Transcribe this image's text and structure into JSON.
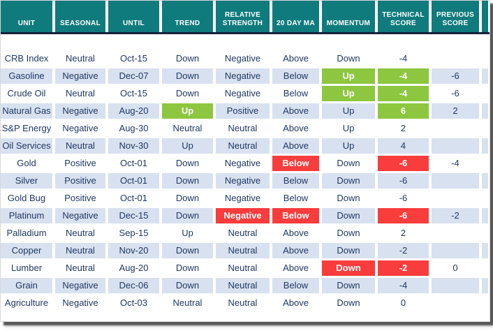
{
  "table": {
    "columns": [
      "UNIT",
      "SEASONAL",
      "UNTIL",
      "TREND",
      "RELATIVE STRENGTH",
      "20 DAY MA",
      "MOMENTUM",
      "TECHNICAL SCORE",
      "PREVIOUS SCORE"
    ],
    "column_keys": [
      "unit",
      "seasonal",
      "until",
      "trend",
      "relative-strength",
      "20-day-ma",
      "momentum",
      "technical-score",
      "previous-score"
    ],
    "rows": [
      {
        "cells": [
          "CRB Index",
          "Neutral",
          "Oct-15",
          "Down",
          "Negative",
          "Above",
          "Down",
          "-4",
          ""
        ],
        "hl": [
          "",
          "",
          "",
          "",
          "",
          "",
          "",
          "",
          ""
        ]
      },
      {
        "cells": [
          "Gasoline",
          "Negative",
          "Dec-07",
          "Down",
          "Negative",
          "Below",
          "Up",
          "-4",
          "-6"
        ],
        "hl": [
          "",
          "",
          "",
          "",
          "",
          "",
          "g",
          "g",
          ""
        ]
      },
      {
        "cells": [
          "Crude Oil",
          "Neutral",
          "Oct-15",
          "Down",
          "Negative",
          "Below",
          "Up",
          "-4",
          "-6"
        ],
        "hl": [
          "",
          "",
          "",
          "",
          "",
          "",
          "g",
          "g",
          ""
        ]
      },
      {
        "cells": [
          "Natural Gas",
          "Negative",
          "Aug-20",
          "Up",
          "Positive",
          "Above",
          "Up",
          "6",
          "2"
        ],
        "hl": [
          "",
          "",
          "",
          "g",
          "",
          "",
          "",
          "g",
          ""
        ]
      },
      {
        "cells": [
          "S&P Energy",
          "Negative",
          "Aug-30",
          "Neutral",
          "Neutral",
          "Above",
          "Up",
          "2",
          ""
        ],
        "hl": [
          "",
          "",
          "",
          "",
          "",
          "",
          "",
          "",
          ""
        ]
      },
      {
        "cells": [
          "Oil Services",
          "Neutral",
          "Nov-30",
          "Up",
          "Neutral",
          "Above",
          "Up",
          "4",
          ""
        ],
        "hl": [
          "",
          "",
          "",
          "",
          "",
          "",
          "",
          "",
          ""
        ]
      },
      {
        "cells": [
          "Gold",
          "Positive",
          "Oct-01",
          "Down",
          "Negative",
          "Below",
          "Down",
          "-6",
          "-4"
        ],
        "hl": [
          "",
          "",
          "",
          "",
          "",
          "r",
          "",
          "r",
          ""
        ]
      },
      {
        "cells": [
          "Silver",
          "Positive",
          "Oct-01",
          "Down",
          "Negative",
          "Below",
          "Down",
          "-6",
          ""
        ],
        "hl": [
          "",
          "",
          "",
          "",
          "",
          "",
          "",
          "",
          ""
        ]
      },
      {
        "cells": [
          "Gold Bug",
          "Positive",
          "Oct-01",
          "Down",
          "Negative",
          "Below",
          "Down",
          "-6",
          ""
        ],
        "hl": [
          "",
          "",
          "",
          "",
          "",
          "",
          "",
          "",
          ""
        ]
      },
      {
        "cells": [
          "Platinum",
          "Negative",
          "Dec-15",
          "Down",
          "Negative",
          "Below",
          "Down",
          "-6",
          "-2"
        ],
        "hl": [
          "",
          "",
          "",
          "",
          "r",
          "r",
          "",
          "r",
          ""
        ]
      },
      {
        "cells": [
          "Palladium",
          "Neutral",
          "Sep-15",
          "Up",
          "Neutral",
          "Above",
          "Down",
          "2",
          ""
        ],
        "hl": [
          "",
          "",
          "",
          "",
          "",
          "",
          "",
          "",
          ""
        ]
      },
      {
        "cells": [
          "Copper",
          "Neutral",
          "Nov-20",
          "Down",
          "Neutral",
          "Above",
          "Down",
          "-2",
          ""
        ],
        "hl": [
          "",
          "",
          "",
          "",
          "",
          "",
          "",
          "",
          ""
        ]
      },
      {
        "cells": [
          "Lumber",
          "Neutral",
          "Aug-20",
          "Down",
          "Neutral",
          "Above",
          "Down",
          "-2",
          "0"
        ],
        "hl": [
          "",
          "",
          "",
          "",
          "",
          "",
          "r",
          "r",
          ""
        ]
      },
      {
        "cells": [
          "Grain",
          "Negative",
          "Dec-06",
          "Down",
          "Neutral",
          "Below",
          "Down",
          "-4",
          ""
        ],
        "hl": [
          "",
          "",
          "",
          "",
          "",
          "",
          "",
          "",
          ""
        ]
      },
      {
        "cells": [
          "Agriculture",
          "Negative",
          "Oct-03",
          "Neutral",
          "Neutral",
          "Above",
          "Down",
          "0",
          ""
        ],
        "hl": [
          "",
          "",
          "",
          "",
          "",
          "",
          "",
          "",
          ""
        ]
      }
    ]
  },
  "colors": {
    "header_bg": "#0f7b7d",
    "header_text": "#ffffff",
    "divider": "#16233c",
    "row_alt_bg": "#d8e1f0",
    "row_plain_bg": "#ffffff",
    "highlight_positive": "#8dc63f",
    "highlight_negative": "#f93c3c",
    "body_text": "#1f3864"
  }
}
